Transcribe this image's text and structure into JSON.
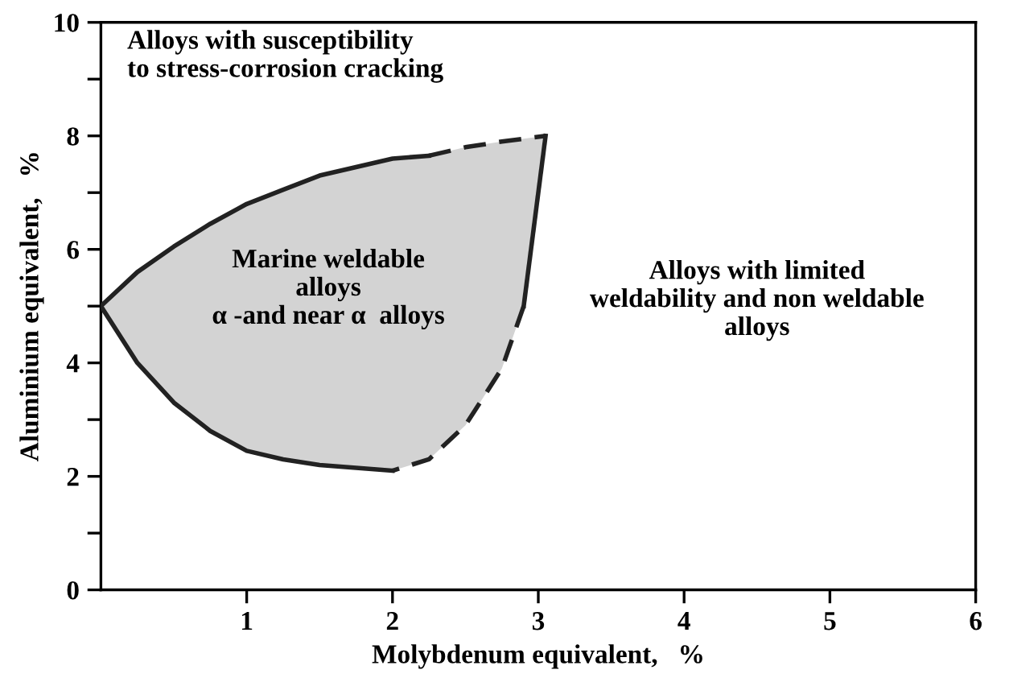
{
  "chart_data": {
    "type": "line",
    "xlabel": "Molybdenum equivalent,   %",
    "ylabel": "Aluminium equivalent,   %",
    "xlim": [
      0,
      6
    ],
    "ylim": [
      0,
      10
    ],
    "xticks": [
      1,
      2,
      3,
      4,
      5,
      6
    ],
    "yticks": [
      0,
      {
        "value": 1,
        "label": null
      },
      2,
      {
        "value": 3,
        "label": null
      },
      4,
      {
        "value": 5,
        "label": null
      },
      6,
      {
        "value": 7,
        "label": null
      },
      8,
      {
        "value": 9,
        "label": null
      },
      10
    ],
    "grid": false,
    "legend": false,
    "marker": "none",
    "series": [
      {
        "type": "area",
        "color": "#d3d3d3"
      },
      {
        "type": "line",
        "color": "#222222",
        "line_style": "solid",
        "x": [
          0,
          0.25,
          0.5,
          0.75,
          1,
          1.25,
          1.5,
          1.75,
          2,
          2.25
        ],
        "values": [
          5,
          5.6,
          6.05,
          6.45,
          6.8,
          7.05,
          7.3,
          7.45,
          7.6,
          7.65
        ]
      },
      {
        "type": "line",
        "color": "#222222",
        "line_style": "dashed",
        "x": [
          2.25,
          2.5,
          2.75,
          2.9,
          3.05
        ],
        "values": [
          7.65,
          7.8,
          7.9,
          7.95,
          8.0
        ]
      },
      {
        "type": "line",
        "color": "#222222",
        "line_style": "solid",
        "x": [
          3.05,
          2.9
        ],
        "values": [
          8.0,
          5.0
        ]
      },
      {
        "type": "line",
        "color": "#222222",
        "line_style": "dashed",
        "x": [
          2.9,
          2.75,
          2.5,
          2.25,
          2
        ],
        "values": [
          5.0,
          3.9,
          2.9,
          2.3,
          2.1
        ]
      },
      {
        "type": "line",
        "color": "#222222",
        "line_style": "solid",
        "x": [
          2,
          1.75,
          1.5,
          1.25,
          1,
          0.75,
          0.5,
          0.25,
          0
        ],
        "values": [
          2.1,
          2.15,
          2.2,
          2.3,
          2.45,
          2.8,
          3.3,
          4.0,
          5
        ]
      }
    ],
    "annotations": [
      "Alloys with susceptibility\nto stress-corrosion cracking",
      "Marine weldable\nalloys\nα -and near α  alloys",
      "Alloys with limited\nweldability and non weldable\nalloys"
    ]
  }
}
